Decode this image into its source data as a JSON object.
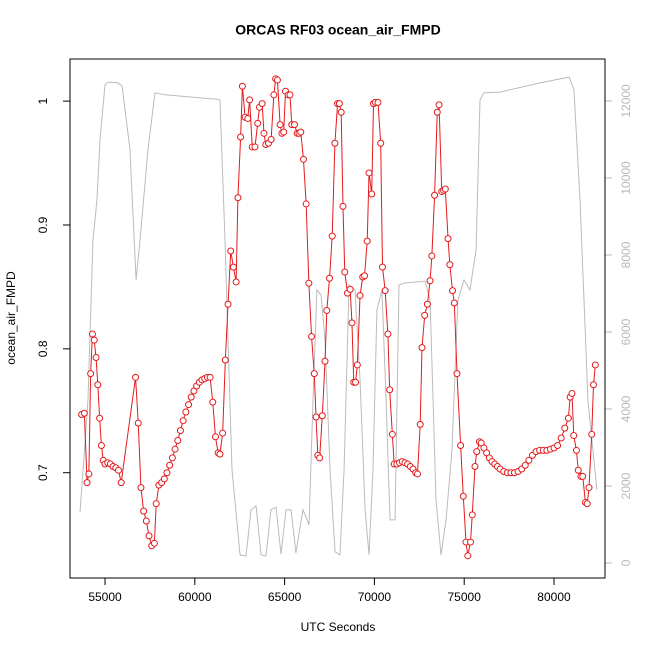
{
  "chart_data": {
    "type": "line",
    "title": "ORCAS RF03 ocean_air_FMPD",
    "x_label": "UTC Seconds",
    "y_label": "ocean_air_FMPD",
    "xlim": [
      53050,
      82840
    ],
    "ylim": [
      0.615,
      1.034
    ],
    "y2lim": [
      -390,
      13090
    ],
    "xticks": [
      55000,
      60000,
      65000,
      70000,
      75000,
      80000
    ],
    "yticks": [
      0.7,
      0.8,
      0.9,
      1.0
    ],
    "y2ticks": [
      0,
      2000,
      4000,
      6000,
      8000,
      10000,
      12000
    ],
    "series": [
      {
        "color": "#e41a1c",
        "markers": true,
        "x": [
          53700,
          53850,
          54000,
          54100,
          54200,
          54300,
          54400,
          54500,
          54600,
          54700,
          54800,
          54900,
          55000,
          55150,
          55300,
          55450,
          55600,
          55750,
          55900,
          56700,
          56850,
          57000,
          57150,
          57300,
          57450,
          57600,
          57750,
          57850,
          58000,
          58150,
          58300,
          58450,
          58600,
          58750,
          58900,
          59050,
          59200,
          59350,
          59500,
          59650,
          59800,
          59950,
          60100,
          60250,
          60400,
          60550,
          60700,
          60850,
          61000,
          61150,
          61300,
          61400,
          61550,
          61700,
          61850,
          62000,
          62150,
          62300,
          62400,
          62550,
          62650,
          62800,
          62950,
          63050,
          63200,
          63350,
          63500,
          63600,
          63750,
          63850,
          63950,
          64100,
          64250,
          64400,
          64500,
          64600,
          64750,
          64850,
          64950,
          65050,
          65200,
          65300,
          65400,
          65550,
          65700,
          65800,
          65900,
          66050,
          66200,
          66350,
          66500,
          66650,
          66750,
          66850,
          66950,
          67100,
          67250,
          67350,
          67500,
          67650,
          67800,
          67950,
          68050,
          68150,
          68250,
          68350,
          68500,
          68650,
          68750,
          68850,
          68950,
          69050,
          69200,
          69350,
          69450,
          69600,
          69700,
          69850,
          69950,
          70050,
          70200,
          70350,
          70450,
          70600,
          70750,
          70850,
          71000,
          71100,
          71250,
          71400,
          71550,
          71700,
          71850,
          72000,
          72150,
          72300,
          72400,
          72550,
          72650,
          72800,
          72950,
          73100,
          73200,
          73350,
          73500,
          73600,
          73750,
          73850,
          73950,
          74100,
          74200,
          74350,
          74450,
          74600,
          74800,
          74950,
          75100,
          75200,
          75350,
          75450,
          75600,
          75700,
          75850,
          75950,
          76100,
          76250,
          76400,
          76550,
          76700,
          76850,
          77000,
          77200,
          77400,
          77600,
          77800,
          78000,
          78200,
          78400,
          78600,
          78800,
          79000,
          79200,
          79400,
          79600,
          79800,
          80000,
          80200,
          80400,
          80600,
          80800,
          80900,
          81000,
          81100,
          81250,
          81350,
          81500,
          81600,
          81750,
          81850,
          81950,
          82100,
          82200,
          82300
        ],
        "values": [
          0.747,
          0.748,
          0.692,
          0.699,
          0.78,
          0.812,
          0.807,
          0.793,
          0.771,
          0.744,
          0.722,
          0.71,
          0.707,
          0.708,
          0.707,
          0.705,
          0.704,
          0.702,
          0.692,
          0.777,
          0.74,
          0.688,
          0.669,
          0.661,
          0.649,
          0.641,
          0.643,
          0.675,
          0.69,
          0.692,
          0.695,
          0.7,
          0.706,
          0.712,
          0.719,
          0.726,
          0.734,
          0.742,
          0.749,
          0.755,
          0.761,
          0.766,
          0.77,
          0.773,
          0.775,
          0.776,
          0.777,
          0.777,
          0.757,
          0.729,
          0.716,
          0.715,
          0.732,
          0.791,
          0.836,
          0.879,
          0.866,
          0.854,
          0.922,
          0.971,
          1.012,
          0.987,
          0.986,
          1.001,
          0.963,
          0.963,
          0.982,
          0.995,
          0.998,
          0.974,
          0.965,
          0.966,
          0.969,
          1.005,
          1.018,
          1.017,
          0.981,
          0.974,
          0.975,
          1.008,
          1.005,
          1.005,
          0.981,
          0.981,
          0.974,
          0.974,
          0.975,
          0.953,
          0.917,
          0.853,
          0.81,
          0.78,
          0.745,
          0.714,
          0.712,
          0.746,
          0.79,
          0.831,
          0.857,
          0.891,
          0.966,
          0.998,
          0.998,
          0.991,
          0.915,
          0.862,
          0.845,
          0.848,
          0.821,
          0.773,
          0.773,
          0.787,
          0.843,
          0.858,
          0.859,
          0.887,
          0.942,
          0.925,
          0.998,
          0.999,
          0.999,
          0.966,
          0.866,
          0.847,
          0.812,
          0.767,
          0.731,
          0.707,
          0.707,
          0.708,
          0.709,
          0.708,
          0.707,
          0.705,
          0.703,
          0.7,
          0.699,
          0.739,
          0.801,
          0.827,
          0.836,
          0.855,
          0.875,
          0.924,
          0.991,
          0.997,
          0.927,
          0.928,
          0.929,
          0.889,
          0.868,
          0.847,
          0.837,
          0.78,
          0.722,
          0.681,
          0.644,
          0.633,
          0.644,
          0.666,
          0.705,
          0.717,
          0.725,
          0.724,
          0.72,
          0.716,
          0.712,
          0.709,
          0.707,
          0.705,
          0.703,
          0.701,
          0.7,
          0.7,
          0.7,
          0.701,
          0.703,
          0.706,
          0.71,
          0.714,
          0.717,
          0.718,
          0.718,
          0.718,
          0.719,
          0.72,
          0.722,
          0.728,
          0.736,
          0.744,
          0.761,
          0.764,
          0.73,
          0.718,
          0.702,
          0.697,
          0.697,
          0.676,
          0.675,
          0.688,
          0.731,
          0.771,
          0.787
        ]
      },
      {
        "color": "#bbbbbb",
        "axis": "y2",
        "markers": false,
        "x": [
          53610,
          54050,
          54330,
          54550,
          54720,
          55000,
          55170,
          55720,
          55950,
          56390,
          56730,
          56950,
          57390,
          57780,
          58340,
          60290,
          61120,
          61400,
          61680,
          62070,
          62520,
          62850,
          63130,
          63410,
          63690,
          63960,
          64240,
          64520,
          64800,
          65080,
          65360,
          65630,
          66020,
          66360,
          66580,
          66800,
          67030,
          67250,
          67530,
          67810,
          68080,
          68310,
          68590,
          68920,
          69200,
          69480,
          69700,
          69920,
          70140,
          70420,
          70650,
          70870,
          71150,
          71370,
          71650,
          72820,
          73100,
          73430,
          73710,
          73990,
          74320,
          74650,
          74990,
          75320,
          75660,
          75880,
          76100,
          76990,
          79220,
          80840,
          81110,
          81450,
          81890,
          82390
        ],
        "values": [
          1330,
          4230,
          8390,
          9430,
          10990,
          12420,
          12490,
          12470,
          12390,
          10730,
          7350,
          8390,
          10730,
          12210,
          12160,
          12080,
          12050,
          12030,
          8390,
          2420,
          210,
          180,
          1380,
          1480,
          210,
          180,
          1380,
          1450,
          230,
          1380,
          1380,
          260,
          1380,
          990,
          4230,
          7090,
          6960,
          5790,
          2420,
          290,
          210,
          2420,
          7220,
          7090,
          4750,
          1380,
          210,
          2420,
          6570,
          7090,
          4230,
          1120,
          1120,
          7220,
          7270,
          7320,
          6830,
          1640,
          210,
          1120,
          2940,
          6830,
          7350,
          7090,
          8130,
          12030,
          12210,
          12230,
          12470,
          12620,
          12290,
          9430,
          4230,
          1900
        ]
      }
    ]
  }
}
